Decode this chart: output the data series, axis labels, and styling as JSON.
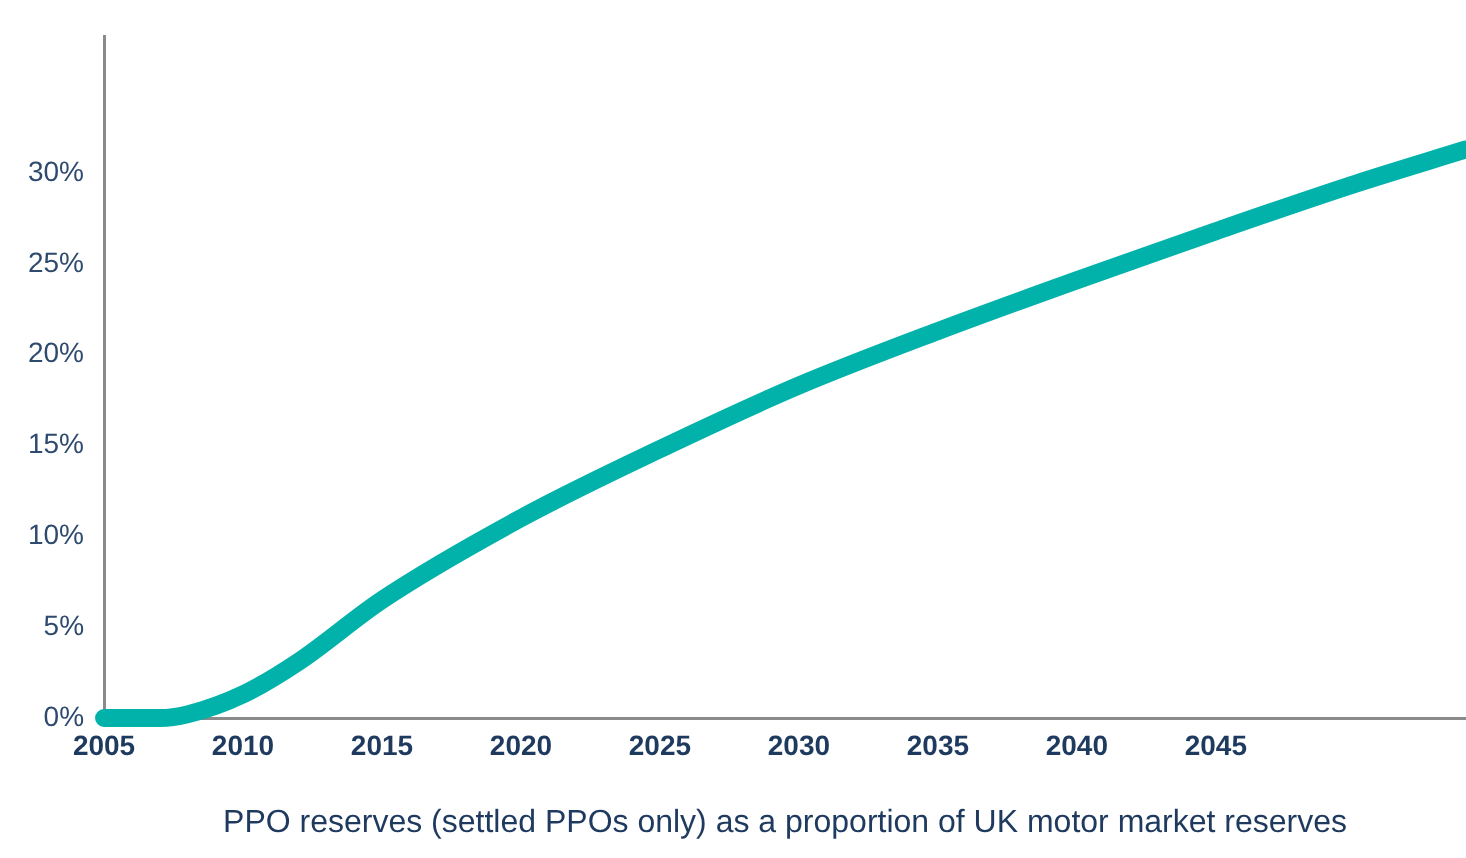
{
  "chart_data": {
    "type": "line",
    "xlabel": "PPO reserves (settled PPOs only) as a proportion of UK motor market reserves",
    "x": [
      2005,
      2007,
      2008,
      2010,
      2012,
      2015,
      2020,
      2025,
      2030,
      2035,
      2040,
      2045,
      2050,
      2054
    ],
    "series": [
      {
        "color": "#00b2a9",
        "values": [
          0,
          0,
          0.2,
          1.3,
          3.1,
          6.5,
          11,
          14.8,
          18.3,
          21.3,
          24.1,
          26.8,
          29.4,
          31.3
        ]
      }
    ],
    "xlim": [
      2005,
      2054
    ],
    "xticks": [
      2005,
      2010,
      2015,
      2020,
      2025,
      2030,
      2035,
      2040,
      2045
    ],
    "ylim": [
      0,
      37.5
    ],
    "yticks": [
      {
        "value": 0,
        "label": "0%"
      },
      {
        "value": 5,
        "label": "5%"
      },
      {
        "value": 10,
        "label": "10%"
      },
      {
        "value": 15,
        "label": "15%"
      },
      {
        "value": 20,
        "label": "20%"
      },
      {
        "value": 25,
        "label": "25%"
      },
      {
        "value": 30,
        "label": "30%"
      }
    ],
    "grid": false,
    "legend": false,
    "marker": "none",
    "line_style": "solid"
  }
}
